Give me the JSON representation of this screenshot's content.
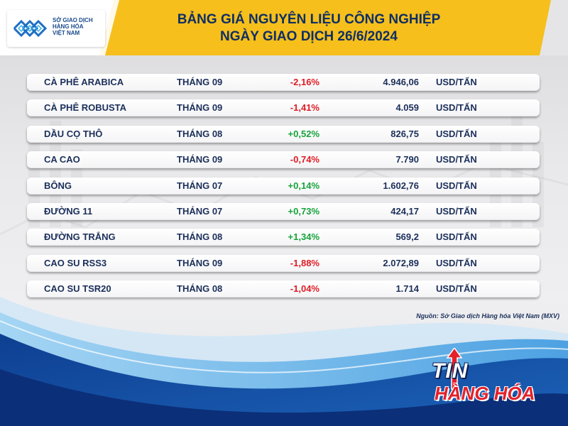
{
  "header": {
    "logo_lines": [
      "SỞ GIAO DỊCH",
      "HÀNG HÓA",
      "VIỆT NAM"
    ],
    "title_line1": "BẢNG GIÁ NGUYÊN LIỆU CÔNG NGHIỆP",
    "title_line2": "NGÀY GIAO DỊCH 26/6/2024"
  },
  "rows": [
    {
      "name": "CÀ PHÊ ARABICA",
      "month": "THÁNG 09",
      "change": "-2,16%",
      "price": "4.946,06",
      "unit": "USD/TẤN"
    },
    {
      "name": "CÀ PHÊ ROBUSTA",
      "month": "THÁNG 09",
      "change": "-1,41%",
      "price": "4.059",
      "unit": "USD/TẤN"
    },
    {
      "name": "DẦU CỌ THÔ",
      "month": "THÁNG 08",
      "change": "+0,52%",
      "price": "826,75",
      "unit": "USD/TẤN"
    },
    {
      "name": "CA CAO",
      "month": "THÁNG 09",
      "change": "-0,74%",
      "price": "7.790",
      "unit": "USD/TẤN"
    },
    {
      "name": "BÔNG",
      "month": "THÁNG 07",
      "change": "+0,14%",
      "price": "1.602,76",
      "unit": "USD/TẤN"
    },
    {
      "name": "ĐƯỜNG 11",
      "month": "THÁNG 07",
      "change": "+0,73%",
      "price": "424,17",
      "unit": "USD/TẤN"
    },
    {
      "name": "ĐƯỜNG TRẮNG",
      "month": "THÁNG 08",
      "change": "+1,34%",
      "price": "569,2",
      "unit": "USD/TẤN"
    },
    {
      "name": "CAO SU RSS3",
      "month": "THÁNG 09",
      "change": "-1,88%",
      "price": "2.072,89",
      "unit": "USD/TẤN"
    },
    {
      "name": "CAO SU TSR20",
      "month": "THÁNG 08",
      "change": "-1,04%",
      "price": "1.714",
      "unit": "USD/TẤN"
    }
  ],
  "source": "Nguồn: Sở Giao dịch Hàng hóa Việt Nam (MXV)",
  "brand": {
    "line1": "TIN",
    "line2": "HÀNG HÓA"
  },
  "colors": {
    "header_yellow": "#f6bf1c",
    "header_white": "#ffffff",
    "title_navy": "#0f2f63",
    "negative": "#e01b24",
    "positive": "#17a33a",
    "wave_blue": "#1c62b8",
    "brand_red": "#e3212b"
  }
}
